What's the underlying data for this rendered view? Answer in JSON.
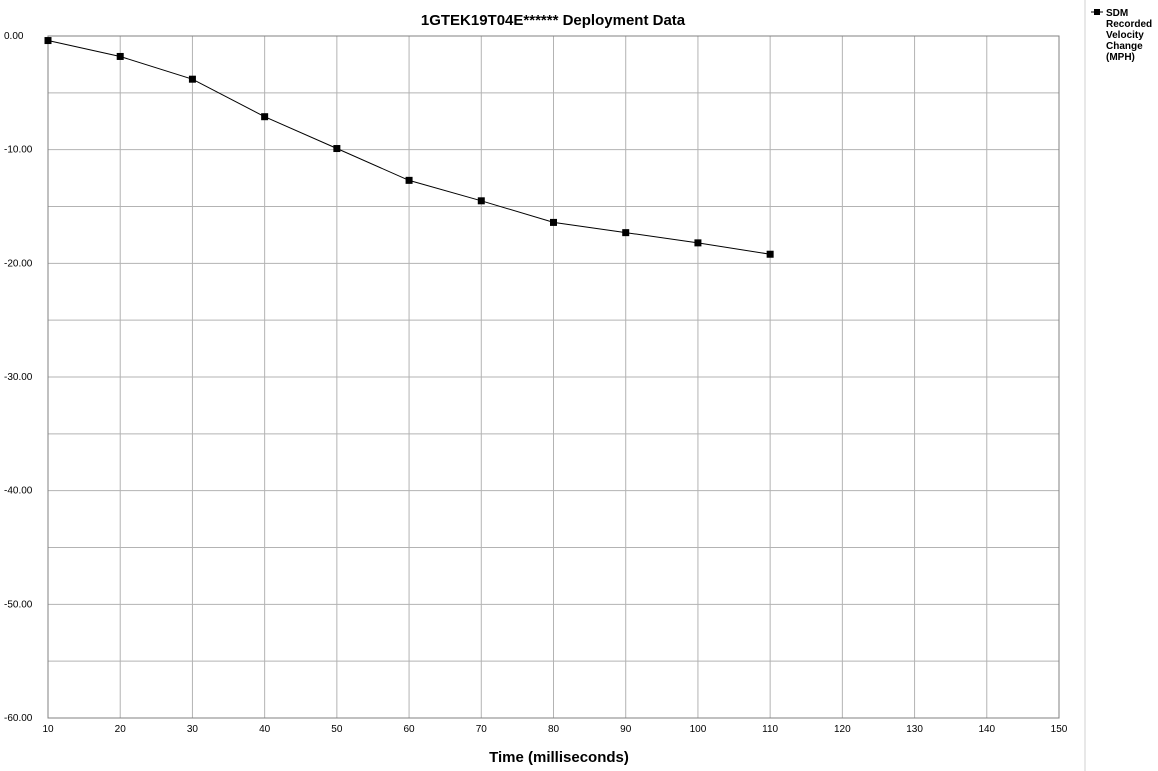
{
  "chart_data": {
    "type": "line",
    "title": "1GTEK19T04E******  Deployment Data",
    "xlabel": "Time (milliseconds)",
    "ylabel": "",
    "xlim": [
      10,
      150
    ],
    "ylim": [
      -60,
      0
    ],
    "x_ticks": [
      "10",
      "20",
      "30",
      "40",
      "50",
      "60",
      "70",
      "80",
      "90",
      "100",
      "110",
      "120",
      "130",
      "140",
      "150"
    ],
    "y_ticks": [
      "0.00",
      "-10.00",
      "-20.00",
      "-30.00",
      "-40.00",
      "-50.00",
      "-60.00"
    ],
    "grid": true,
    "legend_position": "top-right",
    "series": [
      {
        "name": "SDM Recorded Velocity Change (MPH)",
        "legend_lines": [
          "SDM",
          "Recorded",
          "Velocity",
          "Change",
          "(MPH)"
        ],
        "color": "#000000",
        "marker": "square",
        "x": [
          10,
          20,
          30,
          40,
          50,
          60,
          70,
          80,
          90,
          100,
          110
        ],
        "y": [
          -0.4,
          -1.8,
          -3.8,
          -7.1,
          -9.9,
          -12.7,
          -14.5,
          -16.4,
          -17.3,
          -18.2,
          -19.2
        ]
      }
    ]
  }
}
